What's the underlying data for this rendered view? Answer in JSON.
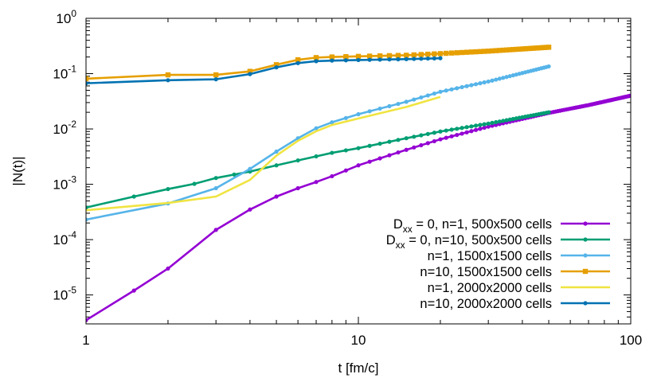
{
  "chart_data": {
    "type": "line",
    "title": "",
    "xlabel": "t [fm/c]",
    "ylabel": "|N(t)|",
    "xscale": "log",
    "yscale": "log",
    "xlim": [
      1,
      100
    ],
    "ylim": [
      3e-06,
      1
    ],
    "grid": false,
    "legend_position": "bottom-right",
    "x_ticks": [
      {
        "value": 1,
        "label": "1"
      },
      {
        "value": 10,
        "label": "10"
      },
      {
        "value": 100,
        "label": "100"
      }
    ],
    "y_ticks": [
      {
        "value": 1e-05,
        "base": "10",
        "exp": "-5"
      },
      {
        "value": 0.0001,
        "base": "10",
        "exp": "-4"
      },
      {
        "value": 0.001,
        "base": "10",
        "exp": "-3"
      },
      {
        "value": 0.01,
        "base": "10",
        "exp": "-2"
      },
      {
        "value": 0.1,
        "base": "10",
        "exp": "-1"
      },
      {
        "value": 1,
        "base": "10",
        "exp": "0"
      }
    ],
    "series": [
      {
        "name_parts": [
          [
            "D",
            ""
          ],
          [
            "xx",
            "sub"
          ],
          [
            " = 0, n=1,   500x500 cells",
            ""
          ]
        ],
        "color": "#9400d3",
        "marker": "dot",
        "x": [
          1,
          1.5,
          2,
          3,
          4,
          5,
          6,
          7,
          8,
          10,
          15,
          20,
          30,
          50,
          70,
          100
        ],
        "y": [
          3.5e-06,
          1.2e-05,
          3e-05,
          0.00015,
          0.00035,
          0.0006,
          0.00085,
          0.0011,
          0.0014,
          0.0022,
          0.0042,
          0.0065,
          0.011,
          0.0195,
          0.027,
          0.04
        ]
      },
      {
        "name_parts": [
          [
            "D",
            ""
          ],
          [
            "xx",
            "sub"
          ],
          [
            " = 0, n=10,   500x500 cells",
            ""
          ]
        ],
        "color": "#009e73",
        "marker": "dot",
        "x": [
          1,
          1.5,
          2,
          2.5,
          3,
          3.5,
          4,
          5,
          6,
          7,
          8,
          10,
          15,
          20,
          30,
          50
        ],
        "y": [
          0.00038,
          0.0006,
          0.00082,
          0.00102,
          0.0013,
          0.0015,
          0.0017,
          0.0022,
          0.0027,
          0.0032,
          0.0037,
          0.0045,
          0.0068,
          0.009,
          0.0125,
          0.02
        ]
      },
      {
        "name_parts": [
          [
            "n=1,   1500x1500 cells",
            ""
          ]
        ],
        "color": "#56b4e9",
        "marker": "dot",
        "x": [
          1,
          2,
          3,
          4,
          5,
          6,
          7,
          8,
          10,
          15,
          20,
          30,
          50
        ],
        "y": [
          0.00023,
          0.00045,
          0.00085,
          0.0019,
          0.0039,
          0.0068,
          0.0103,
          0.0132,
          0.0185,
          0.031,
          0.047,
          0.072,
          0.135
        ]
      },
      {
        "name_parts": [
          [
            "n=10, 1500x1500 cells",
            ""
          ]
        ],
        "color": "#e69f00",
        "marker": "square",
        "x": [
          1,
          2,
          3,
          4,
          5,
          6,
          7,
          8,
          10,
          15,
          20,
          30,
          50
        ],
        "y": [
          0.081,
          0.095,
          0.095,
          0.11,
          0.145,
          0.178,
          0.195,
          0.2,
          0.205,
          0.215,
          0.23,
          0.255,
          0.3
        ]
      },
      {
        "name_parts": [
          [
            "n=1,   2000x2000 cells",
            ""
          ]
        ],
        "color": "#f0e442",
        "marker": "none",
        "x": [
          1,
          2,
          3,
          4,
          5,
          6,
          7,
          8,
          10,
          15,
          20
        ],
        "y": [
          0.00034,
          0.00046,
          0.0006,
          0.0012,
          0.0033,
          0.0061,
          0.0091,
          0.0118,
          0.0155,
          0.025,
          0.038
        ]
      },
      {
        "name_parts": [
          [
            "n=10, 2000x2000 cells",
            ""
          ]
        ],
        "color": "#0072b2",
        "marker": "dot",
        "x": [
          1,
          2,
          3,
          4,
          5,
          6,
          7,
          8,
          10,
          15,
          20
        ],
        "y": [
          0.067,
          0.076,
          0.079,
          0.098,
          0.13,
          0.155,
          0.168,
          0.172,
          0.176,
          0.183,
          0.19
        ]
      }
    ]
  }
}
